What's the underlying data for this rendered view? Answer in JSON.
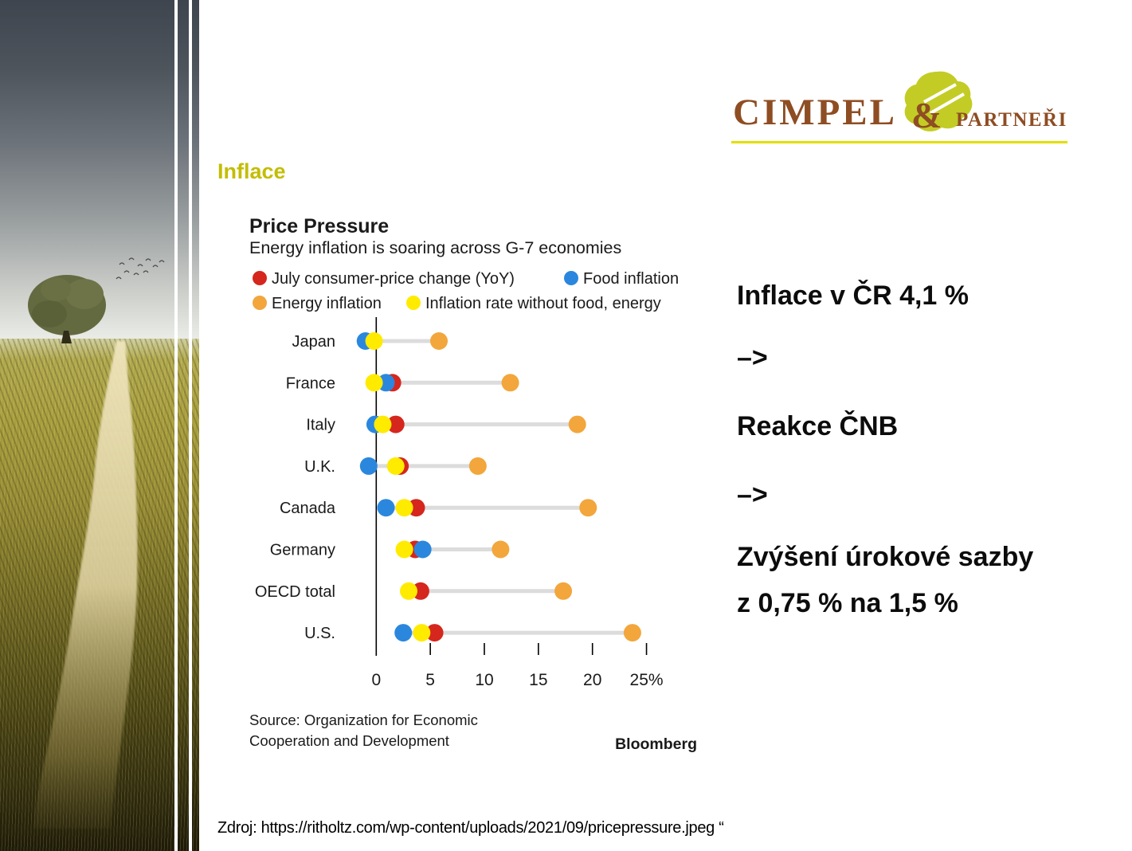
{
  "slide": {
    "title": "Inflace",
    "title_color": "#c3bd00",
    "source_line": "Zdroj: https://ritholtz.com/wp-content/uploads/2021/09/pricepressure.jpeg “"
  },
  "logo": {
    "name_main": "CIMPEL",
    "ampersand": "&",
    "name_secondary": "PARTNEŘI",
    "brown": "#8e4d22",
    "green": "#c3cc25",
    "underline": "#e5de00"
  },
  "notes": {
    "line1": "Inflace v ČR 4,1 %",
    "arrow1": "–>",
    "line2": "Reakce ČNB",
    "arrow2": "–>",
    "line3a": "Zvýšení úrokové sazby",
    "line3b": "z 0,75 % na 1,5 %"
  },
  "chart_data": {
    "type": "scatter",
    "variant": "dot-plot",
    "title": "Price Pressure",
    "subtitle": "Energy inflation is soaring across G-7 economies",
    "legend_position": "top",
    "grid": false,
    "xlim": [
      -1.5,
      26
    ],
    "x_ticks": [
      {
        "value": 0,
        "label": "0"
      },
      {
        "value": 5,
        "label": "5"
      },
      {
        "value": 10,
        "label": "10"
      },
      {
        "value": 15,
        "label": "15"
      },
      {
        "value": 20,
        "label": "20"
      },
      {
        "value": 25,
        "label": "25%"
      }
    ],
    "legend": [
      {
        "key": "cpi",
        "label": "July consumer-price change (YoY)",
        "color": "#d5271d"
      },
      {
        "key": "food",
        "label": "Food inflation",
        "color": "#2b87dd"
      },
      {
        "key": "energy",
        "label": "Energy inflation",
        "color": "#f2a63c"
      },
      {
        "key": "core",
        "label": "Inflation rate without food, energy",
        "color": "#ffeb00"
      }
    ],
    "rows": [
      {
        "label": "Japan",
        "cpi": null,
        "food": -1.0,
        "energy": 5.8,
        "core": -0.2
      },
      {
        "label": "France",
        "cpi": 1.5,
        "food": 0.9,
        "energy": 12.4,
        "core": -0.2
      },
      {
        "label": "Italy",
        "cpi": 1.8,
        "food": -0.1,
        "energy": 18.6,
        "core": 0.6
      },
      {
        "label": "U.K.",
        "cpi": 2.2,
        "food": -0.7,
        "energy": 9.4,
        "core": 1.8
      },
      {
        "label": "Canada",
        "cpi": 3.7,
        "food": 0.9,
        "energy": 19.6,
        "core": 2.6
      },
      {
        "label": "Germany",
        "cpi": 3.6,
        "food": 4.3,
        "energy": 11.5,
        "core": 2.6
      },
      {
        "label": "OECD total",
        "cpi": 4.1,
        "food": null,
        "energy": 17.3,
        "core": 3.0
      },
      {
        "label": "U.S.",
        "cpi": 5.4,
        "food": 2.5,
        "energy": 23.7,
        "core": 4.2
      }
    ],
    "connector_color": "#dcdcdc",
    "source": {
      "line1": "Source: Organization for Economic",
      "line2": "Cooperation and Development"
    },
    "brand": "Bloomberg"
  }
}
